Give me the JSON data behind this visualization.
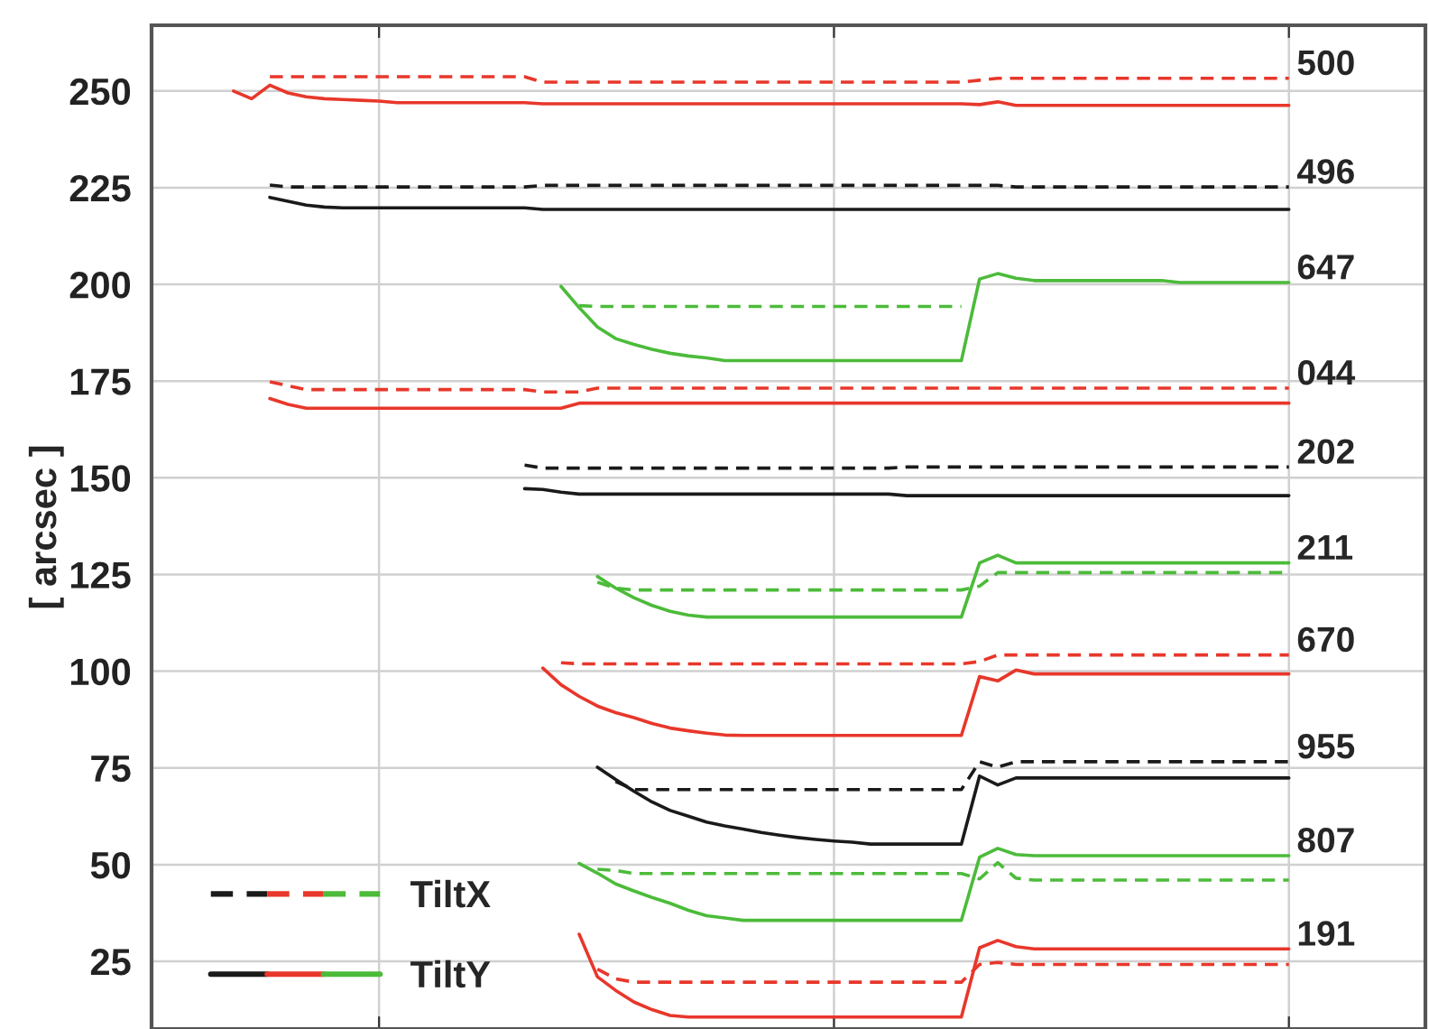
{
  "chart_data": {
    "type": "line",
    "ylabel": "[ arcsec ]",
    "categories": [
      null,
      null,
      null,
      null,
      null,
      null,
      null,
      null,
      null,
      null,
      null,
      null,
      null,
      null,
      null,
      null,
      null,
      null,
      null,
      null,
      null,
      null,
      null,
      null,
      null,
      null,
      null,
      null,
      null,
      null,
      null,
      null,
      null,
      null,
      null,
      null,
      null,
      null,
      null,
      null,
      null,
      null,
      null,
      null,
      null,
      null,
      null,
      null,
      null,
      null,
      null,
      null,
      null,
      null,
      null,
      null,
      null,
      null,
      null,
      null,
      null,
      null,
      null,
      null,
      null,
      null,
      null,
      null,
      null,
      null
    ],
    "ylim": [
      7.5,
      267
    ],
    "yticks": [
      25,
      50,
      75,
      100,
      125,
      150,
      175,
      200,
      225,
      250
    ],
    "grid": true,
    "legend": "bottom left",
    "series": [
      {
        "name": "TiltX",
        "color": "#4cbb3a",
        "line_style": "dashed",
        "values": [
          null,
          null,
          null,
          null,
          null,
          null,
          null,
          null,
          null,
          null,
          null,
          null,
          null,
          null,
          null,
          null,
          null,
          null,
          null,
          null,
          null,
          null,
          null,
          194.5,
          194.3,
          194.3,
          194.3,
          194.3,
          194.3,
          194.3,
          194.3,
          194.3,
          194.3,
          194.3,
          194.3,
          194.3,
          194.3,
          194.3,
          194.3,
          194.3,
          194.3,
          194.3,
          194.3,
          194.3,
          194.3,
          null,
          null,
          null,
          null,
          null,
          null,
          null,
          null,
          null,
          null,
          null,
          null,
          null,
          null,
          null,
          null,
          null,
          null,
          null,
          null,
          null,
          null,
          null,
          null,
          null
        ]
      },
      {
        "name": "TiltY",
        "color": "#4cbb3a",
        "line_style": "solid",
        "values": [
          null,
          null,
          null,
          null,
          null,
          null,
          null,
          null,
          null,
          null,
          null,
          null,
          null,
          null,
          null,
          null,
          null,
          null,
          null,
          null,
          null,
          null,
          199.5,
          194,
          189,
          186,
          184.5,
          183.2,
          182.2,
          181.5,
          181,
          180.3,
          180.3,
          180.3,
          180.3,
          180.3,
          180.3,
          180.3,
          180.3,
          180.3,
          180.3,
          180.3,
          180.3,
          180.3,
          180.3,
          201.4,
          202.8,
          201.6,
          201,
          201,
          201,
          201,
          201,
          201,
          201,
          201,
          200.5,
          200.5,
          200.5,
          200.5,
          200.5,
          200.5,
          200.5,
          null,
          null,
          null,
          null,
          null,
          null,
          null
        ]
      },
      {
        "color": "#1a1a1a",
        "line_style": "dashed",
        "values": [
          null,
          null,
          null,
          null,
          null,
          null,
          225.7,
          225.2,
          225.2,
          225.2,
          225.2,
          225.2,
          225.2,
          225.2,
          225.2,
          225.2,
          225.2,
          225.2,
          225.2,
          225.2,
          225.2,
          225.6,
          225.6,
          225.6,
          225.6,
          225.6,
          225.6,
          225.6,
          225.6,
          225.6,
          225.6,
          225.6,
          225.6,
          225.6,
          225.6,
          225.6,
          225.6,
          225.6,
          225.6,
          225.6,
          225.6,
          225.6,
          225.6,
          225.6,
          225.6,
          225.6,
          225.6,
          225.2,
          225.2,
          225.2,
          225.2,
          225.2,
          225.2,
          225.2,
          225.2,
          225.2,
          225.2,
          225.2,
          225.2,
          225.2,
          225.2,
          225.2,
          225.2,
          null,
          null,
          null,
          null,
          null,
          null,
          null
        ]
      },
      {
        "color": "#1a1a1a",
        "line_style": "solid",
        "values": [
          null,
          null,
          null,
          null,
          null,
          null,
          222.5,
          221.5,
          220.5,
          220,
          219.8,
          219.8,
          219.8,
          219.8,
          219.8,
          219.8,
          219.8,
          219.8,
          219.8,
          219.8,
          219.8,
          219.4,
          219.4,
          219.4,
          219.4,
          219.4,
          219.4,
          219.4,
          219.4,
          219.4,
          219.4,
          219.4,
          219.4,
          219.4,
          219.4,
          219.4,
          219.4,
          219.4,
          219.4,
          219.4,
          219.4,
          219.4,
          219.4,
          219.4,
          219.4,
          219.4,
          219.4,
          219.4,
          219.4,
          219.4,
          219.4,
          219.4,
          219.4,
          219.4,
          219.4,
          219.4,
          219.4,
          219.4,
          219.4,
          219.4,
          219.4,
          219.4,
          219.4,
          null,
          null,
          null,
          null,
          null,
          null,
          null
        ]
      },
      {
        "color": "#e8372b",
        "line_style": "dashed",
        "values": [
          null,
          null,
          null,
          null,
          null,
          null,
          253.7,
          253.7,
          253.7,
          253.7,
          253.7,
          253.7,
          253.7,
          253.7,
          253.7,
          253.7,
          253.7,
          253.7,
          253.7,
          253.7,
          253.7,
          252.3,
          252.3,
          252.3,
          252.3,
          252.3,
          252.3,
          252.3,
          252.3,
          252.3,
          252.3,
          252.3,
          252.3,
          252.3,
          252.3,
          252.3,
          252.3,
          252.3,
          252.3,
          252.3,
          252.3,
          252.3,
          252.3,
          252.3,
          252.3,
          252.8,
          253.3,
          253.3,
          253.3,
          253.3,
          253.3,
          253.3,
          253.3,
          253.3,
          253.3,
          253.3,
          253.3,
          253.3,
          253.3,
          253.3,
          253.3,
          253.3,
          253.3,
          null,
          null,
          null,
          null,
          null,
          null,
          null
        ]
      },
      {
        "color": "#e8372b",
        "line_style": "solid",
        "values": [
          null,
          null,
          null,
          null,
          250,
          248,
          251.5,
          249.5,
          248.5,
          248,
          247.8,
          247.6,
          247.4,
          247,
          247,
          247,
          247,
          247,
          247,
          247,
          247,
          246.7,
          246.7,
          246.7,
          246.7,
          246.7,
          246.7,
          246.7,
          246.7,
          246.7,
          246.7,
          246.7,
          246.7,
          246.7,
          246.7,
          246.7,
          246.7,
          246.7,
          246.7,
          246.7,
          246.7,
          246.7,
          246.7,
          246.7,
          246.7,
          246.5,
          247.2,
          246.3,
          246.3,
          246.3,
          246.3,
          246.3,
          246.3,
          246.3,
          246.3,
          246.3,
          246.3,
          246.3,
          246.3,
          246.3,
          246.3,
          246.3,
          246.3,
          null,
          null,
          null,
          null,
          null,
          null,
          null
        ]
      },
      {
        "color": "#e8372b",
        "line_style": "dashed",
        "values": [
          null,
          null,
          null,
          null,
          null,
          null,
          174.8,
          173.8,
          172.8,
          172.8,
          172.8,
          172.8,
          172.8,
          172.8,
          172.8,
          172.8,
          172.8,
          172.8,
          172.8,
          172.8,
          172.8,
          172.2,
          172.2,
          172.2,
          173.2,
          173.2,
          173.2,
          173.2,
          173.2,
          173.2,
          173.2,
          173.2,
          173.2,
          173.2,
          173.2,
          173.2,
          173.2,
          173.2,
          173.2,
          173.2,
          173.2,
          173.2,
          173.2,
          173.2,
          173.2,
          173.2,
          173.2,
          173.2,
          173.2,
          173.2,
          173.2,
          173.2,
          173.2,
          173.2,
          173.2,
          173.2,
          173.2,
          173.2,
          173.2,
          173.2,
          173.2,
          173.2,
          173.2,
          null,
          null,
          null,
          null,
          null,
          null,
          null
        ]
      },
      {
        "color": "#e8372b",
        "line_style": "solid",
        "values": [
          null,
          null,
          null,
          null,
          null,
          null,
          170.5,
          169,
          168,
          168,
          168,
          168,
          168,
          168,
          168,
          168,
          168,
          168,
          168,
          168,
          168,
          168,
          168,
          169.3,
          169.3,
          169.3,
          169.3,
          169.3,
          169.3,
          169.3,
          169.3,
          169.3,
          169.3,
          169.3,
          169.3,
          169.3,
          169.3,
          169.3,
          169.3,
          169.3,
          169.3,
          169.3,
          169.3,
          169.3,
          169.3,
          169.3,
          169.3,
          169.3,
          169.3,
          169.3,
          169.3,
          169.3,
          169.3,
          169.3,
          169.3,
          169.3,
          169.3,
          169.3,
          169.3,
          169.3,
          169.3,
          169.3,
          169.3,
          null,
          null,
          null,
          null,
          null,
          null,
          null
        ]
      },
      {
        "color": "#1a1a1a",
        "line_style": "dashed",
        "values": [
          null,
          null,
          null,
          null,
          null,
          null,
          null,
          null,
          null,
          null,
          null,
          null,
          null,
          null,
          null,
          null,
          null,
          null,
          null,
          null,
          153.3,
          152.5,
          152.5,
          152.5,
          152.5,
          152.5,
          152.5,
          152.5,
          152.5,
          152.5,
          152.5,
          152.5,
          152.5,
          152.5,
          152.5,
          152.5,
          152.5,
          152.5,
          152.5,
          152.5,
          152.5,
          152.8,
          152.8,
          152.8,
          152.8,
          152.8,
          152.8,
          152.8,
          152.8,
          152.8,
          152.8,
          152.8,
          152.8,
          152.8,
          152.8,
          152.8,
          152.8,
          152.8,
          152.8,
          152.8,
          152.8,
          152.8,
          152.8,
          null,
          null,
          null,
          null,
          null,
          null,
          null
        ]
      },
      {
        "color": "#1a1a1a",
        "line_style": "solid",
        "values": [
          null,
          null,
          null,
          null,
          null,
          null,
          null,
          null,
          null,
          null,
          null,
          null,
          null,
          null,
          null,
          null,
          null,
          null,
          null,
          null,
          147.2,
          147,
          146.3,
          145.8,
          145.8,
          145.8,
          145.8,
          145.8,
          145.8,
          145.8,
          145.8,
          145.8,
          145.8,
          145.8,
          145.8,
          145.8,
          145.8,
          145.8,
          145.8,
          145.8,
          145.8,
          145.4,
          145.4,
          145.4,
          145.4,
          145.4,
          145.4,
          145.4,
          145.4,
          145.4,
          145.4,
          145.4,
          145.4,
          145.4,
          145.4,
          145.4,
          145.4,
          145.4,
          145.4,
          145.4,
          145.4,
          145.4,
          145.4,
          null,
          null,
          null,
          null,
          null,
          null,
          null
        ]
      },
      {
        "color": "#4cbb3a",
        "line_style": "dashed",
        "values": [
          null,
          null,
          null,
          null,
          null,
          null,
          null,
          null,
          null,
          null,
          null,
          null,
          null,
          null,
          null,
          null,
          null,
          null,
          null,
          null,
          null,
          null,
          null,
          null,
          123,
          121.5,
          121,
          121,
          121,
          121,
          121,
          121,
          121,
          121,
          121,
          121,
          121,
          121,
          121,
          121,
          121,
          121,
          121,
          121,
          121,
          122,
          125.5,
          125.5,
          125.5,
          125.5,
          125.5,
          125.5,
          125.5,
          125.5,
          125.5,
          125.5,
          125.5,
          125.5,
          125.5,
          125.5,
          125.5,
          125.5,
          125.5,
          null,
          null,
          null,
          null,
          null,
          null,
          null
        ]
      },
      {
        "color": "#4cbb3a",
        "line_style": "solid",
        "values": [
          null,
          null,
          null,
          null,
          null,
          null,
          null,
          null,
          null,
          null,
          null,
          null,
          null,
          null,
          null,
          null,
          null,
          null,
          null,
          null,
          null,
          null,
          null,
          null,
          124.5,
          121.5,
          119,
          117,
          115.5,
          114.5,
          114,
          114,
          114,
          114,
          114,
          114,
          114,
          114,
          114,
          114,
          114,
          114,
          114,
          114,
          114,
          128,
          130,
          128,
          128,
          128,
          128,
          128,
          128,
          128,
          128,
          128,
          128,
          128,
          128,
          128,
          128,
          128,
          128,
          null,
          null,
          null,
          null,
          null,
          null,
          null
        ]
      },
      {
        "color": "#e8372b",
        "line_style": "dashed",
        "values": [
          null,
          null,
          null,
          null,
          null,
          null,
          null,
          null,
          null,
          null,
          null,
          null,
          null,
          null,
          null,
          null,
          null,
          null,
          null,
          null,
          null,
          null,
          102.2,
          101.9,
          101.9,
          101.9,
          101.9,
          101.9,
          101.9,
          101.9,
          101.9,
          101.9,
          101.9,
          101.9,
          101.9,
          101.9,
          101.9,
          101.9,
          101.9,
          101.9,
          101.9,
          101.9,
          101.9,
          101.9,
          101.9,
          102.5,
          104.2,
          104.2,
          104.2,
          104.2,
          104.2,
          104.2,
          104.2,
          104.2,
          104.2,
          104.2,
          104.2,
          104.2,
          104.2,
          104.2,
          104.2,
          104.2,
          104.2,
          null,
          null,
          null,
          null,
          null,
          null,
          null
        ]
      },
      {
        "color": "#e8372b",
        "line_style": "solid",
        "values": [
          null,
          null,
          null,
          null,
          null,
          null,
          null,
          null,
          null,
          null,
          null,
          null,
          null,
          null,
          null,
          null,
          null,
          null,
          null,
          null,
          null,
          100.8,
          96.5,
          93.5,
          91,
          89.3,
          88,
          86.5,
          85.3,
          84.6,
          84,
          83.5,
          83.4,
          83.4,
          83.4,
          83.4,
          83.4,
          83.4,
          83.4,
          83.4,
          83.4,
          83.4,
          83.4,
          83.4,
          83.4,
          98.6,
          97.5,
          100.3,
          99.3,
          99.3,
          99.3,
          99.3,
          99.3,
          99.3,
          99.3,
          99.3,
          99.3,
          99.3,
          99.3,
          99.3,
          99.3,
          99.3,
          99.3,
          null,
          null,
          null,
          null,
          null,
          null,
          null
        ]
      },
      {
        "color": "#1a1a1a",
        "line_style": "dashed",
        "values": [
          null,
          null,
          null,
          null,
          null,
          null,
          null,
          null,
          null,
          null,
          null,
          null,
          null,
          null,
          null,
          null,
          null,
          null,
          null,
          null,
          null,
          null,
          null,
          null,
          null,
          71.5,
          69.4,
          69.4,
          69.4,
          69.4,
          69.4,
          69.4,
          69.4,
          69.4,
          69.4,
          69.4,
          69.4,
          69.4,
          69.4,
          69.4,
          69.4,
          69.4,
          69.4,
          69.4,
          69.4,
          76.6,
          75.2,
          76.6,
          76.6,
          76.6,
          76.6,
          76.6,
          76.6,
          76.6,
          76.6,
          76.6,
          76.6,
          76.6,
          76.6,
          76.6,
          76.6,
          76.6,
          76.6,
          null,
          null,
          null,
          null,
          null,
          null,
          null
        ]
      },
      {
        "color": "#1a1a1a",
        "line_style": "solid",
        "values": [
          null,
          null,
          null,
          null,
          null,
          null,
          null,
          null,
          null,
          null,
          null,
          null,
          null,
          null,
          null,
          null,
          null,
          null,
          null,
          null,
          null,
          null,
          null,
          null,
          75.2,
          72,
          69,
          66.2,
          64,
          62.5,
          61,
          60,
          59.2,
          58.3,
          57.6,
          57,
          56.5,
          56.1,
          55.8,
          55.3,
          55.3,
          55.3,
          55.3,
          55.3,
          55.3,
          72.9,
          70.6,
          72.4,
          72.4,
          72.4,
          72.4,
          72.4,
          72.4,
          72.4,
          72.4,
          72.4,
          72.4,
          72.4,
          72.4,
          72.4,
          72.4,
          72.4,
          72.4,
          null,
          null,
          null,
          null,
          null,
          null,
          null
        ]
      },
      {
        "color": "#4cbb3a",
        "line_style": "dashed",
        "values": [
          null,
          null,
          null,
          null,
          null,
          null,
          null,
          null,
          null,
          null,
          null,
          null,
          null,
          null,
          null,
          null,
          null,
          null,
          null,
          null,
          null,
          null,
          null,
          null,
          48.8,
          48.5,
          47.7,
          47.7,
          47.7,
          47.7,
          47.7,
          47.7,
          47.7,
          47.7,
          47.7,
          47.7,
          47.7,
          47.7,
          47.7,
          47.7,
          47.7,
          47.7,
          47.7,
          47.7,
          47.7,
          46.3,
          50.5,
          46.5,
          46,
          46,
          46,
          46,
          46,
          46,
          46,
          46,
          46,
          46,
          46,
          46,
          46,
          46,
          46,
          null,
          null,
          null,
          null,
          null,
          null,
          null
        ]
      },
      {
        "color": "#4cbb3a",
        "line_style": "solid",
        "values": [
          null,
          null,
          null,
          null,
          null,
          null,
          null,
          null,
          null,
          null,
          null,
          null,
          null,
          null,
          null,
          null,
          null,
          null,
          null,
          null,
          null,
          null,
          null,
          50.3,
          47.8,
          45,
          43.2,
          41.5,
          40,
          38.2,
          36.8,
          36.2,
          35.6,
          35.6,
          35.6,
          35.6,
          35.6,
          35.6,
          35.6,
          35.6,
          35.6,
          35.6,
          35.6,
          35.6,
          35.6,
          51.9,
          54.2,
          52.6,
          52.3,
          52.3,
          52.3,
          52.3,
          52.3,
          52.3,
          52.3,
          52.3,
          52.3,
          52.3,
          52.3,
          52.3,
          52.3,
          52.3,
          52.3,
          null,
          null,
          null,
          null,
          null,
          null,
          null
        ]
      },
      {
        "color": "#e8372b",
        "line_style": "dashed",
        "values": [
          null,
          null,
          null,
          null,
          null,
          null,
          null,
          null,
          null,
          null,
          null,
          null,
          null,
          null,
          null,
          null,
          null,
          null,
          null,
          null,
          null,
          null,
          null,
          null,
          23,
          20.5,
          19.6,
          19.6,
          19.6,
          19.6,
          19.6,
          19.6,
          19.6,
          19.6,
          19.6,
          19.6,
          19.6,
          19.6,
          19.6,
          19.6,
          19.6,
          19.6,
          19.6,
          19.6,
          19.6,
          24.2,
          24.7,
          24.2,
          24.2,
          24.2,
          24.2,
          24.2,
          24.2,
          24.2,
          24.2,
          24.2,
          24.2,
          24.2,
          24.2,
          24.2,
          24.2,
          24.2,
          24.2,
          null,
          null,
          null,
          null,
          null,
          null,
          null
        ]
      },
      {
        "color": "#e8372b",
        "line_style": "solid",
        "values": [
          null,
          null,
          null,
          null,
          null,
          null,
          null,
          null,
          null,
          null,
          null,
          null,
          null,
          null,
          null,
          null,
          null,
          null,
          null,
          null,
          null,
          null,
          null,
          32,
          21,
          17.5,
          14.5,
          12.5,
          11,
          10.6,
          10.6,
          10.6,
          10.6,
          10.6,
          10.6,
          10.6,
          10.6,
          10.6,
          10.6,
          10.6,
          10.6,
          10.6,
          10.6,
          10.6,
          10.6,
          28.5,
          30.4,
          28.8,
          28.2,
          28.2,
          28.2,
          28.2,
          28.2,
          28.2,
          28.2,
          28.2,
          28.2,
          28.2,
          28.2,
          28.2,
          28.2,
          28.2,
          28.2,
          null,
          null,
          null,
          null,
          null,
          null,
          null
        ]
      }
    ],
    "annotations": [
      "647",
      "496",
      "500",
      "044",
      "202",
      "211",
      "670",
      "955",
      "807",
      "191"
    ]
  }
}
